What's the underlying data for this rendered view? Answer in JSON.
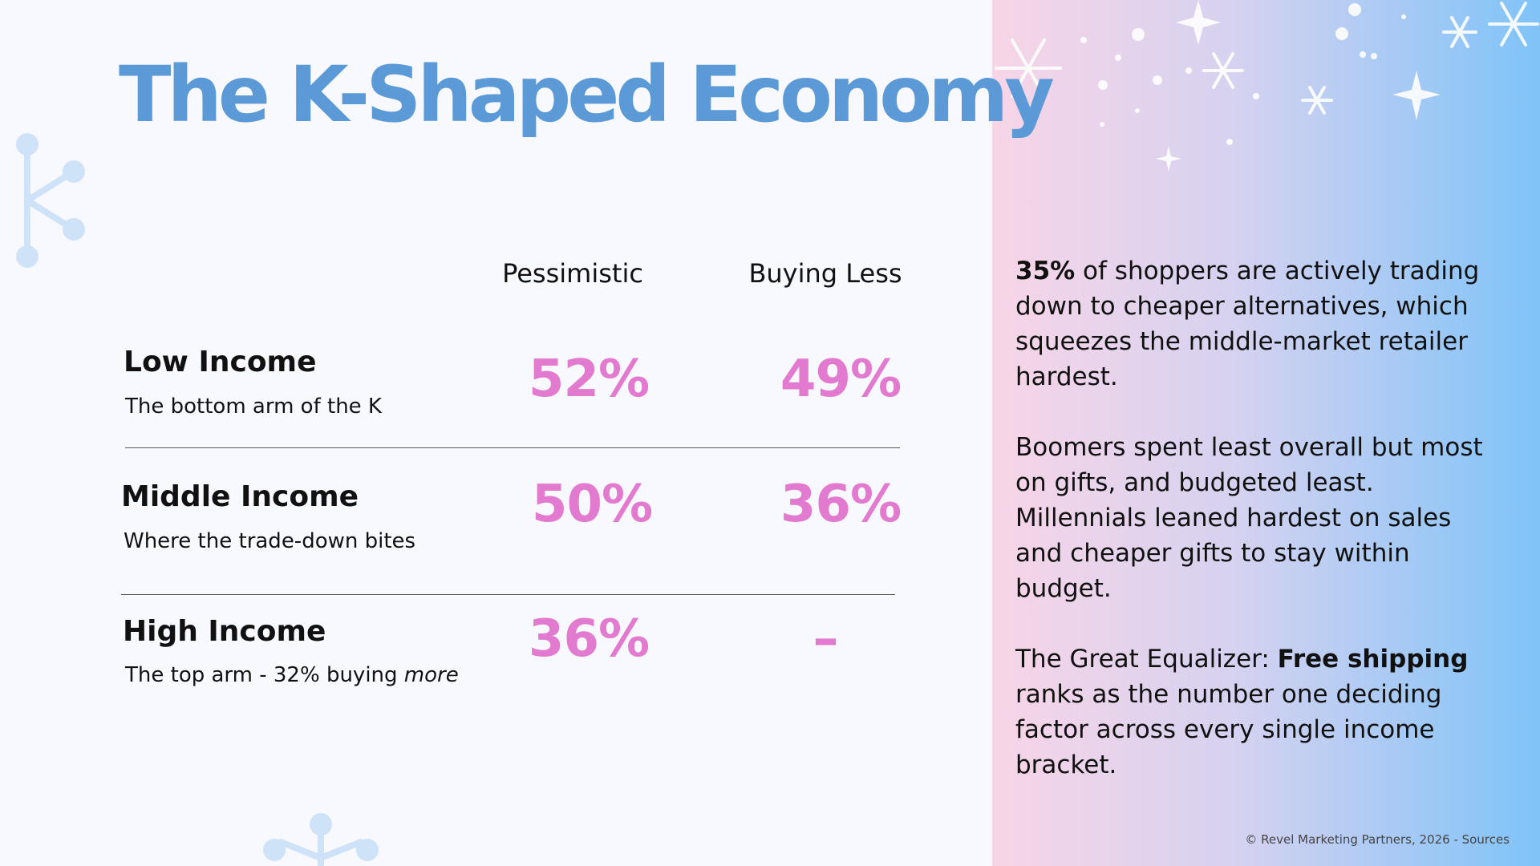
{
  "title": "The K-Shaped Economy",
  "table": {
    "headers": [
      "Pessimistic",
      "Buying Less"
    ],
    "rows": [
      {
        "label": "Low Income",
        "sublabel": "The bottom arm of the K",
        "values": [
          "52%",
          "49%"
        ]
      },
      {
        "label": "Middle Income",
        "sublabel": "Where the trade-down bites",
        "values": [
          "50%",
          "36%"
        ]
      },
      {
        "label": "High Income",
        "sublabel": [
          "The top arm - 32% buying ",
          "more"
        ],
        "values": [
          "36%",
          "–"
        ]
      }
    ]
  },
  "sidebar": {
    "paragraphs": [
      [
        "35%",
        " of shoppers are actively trading down to cheaper alternatives, which squeezes the middle-market retailer hardest."
      ],
      [
        "Boomers spent least overall but most on gifts, and budgeted least. Millennials leaned hardest on sales and cheaper gifts to stay within budget."
      ],
      [
        "The Great Equalizer: ",
        "Free shipping",
        " ranks as the number one deciding factor across every single income bracket."
      ]
    ]
  },
  "footer": "© Revel Marketing Partners, 2026 - Sources"
}
